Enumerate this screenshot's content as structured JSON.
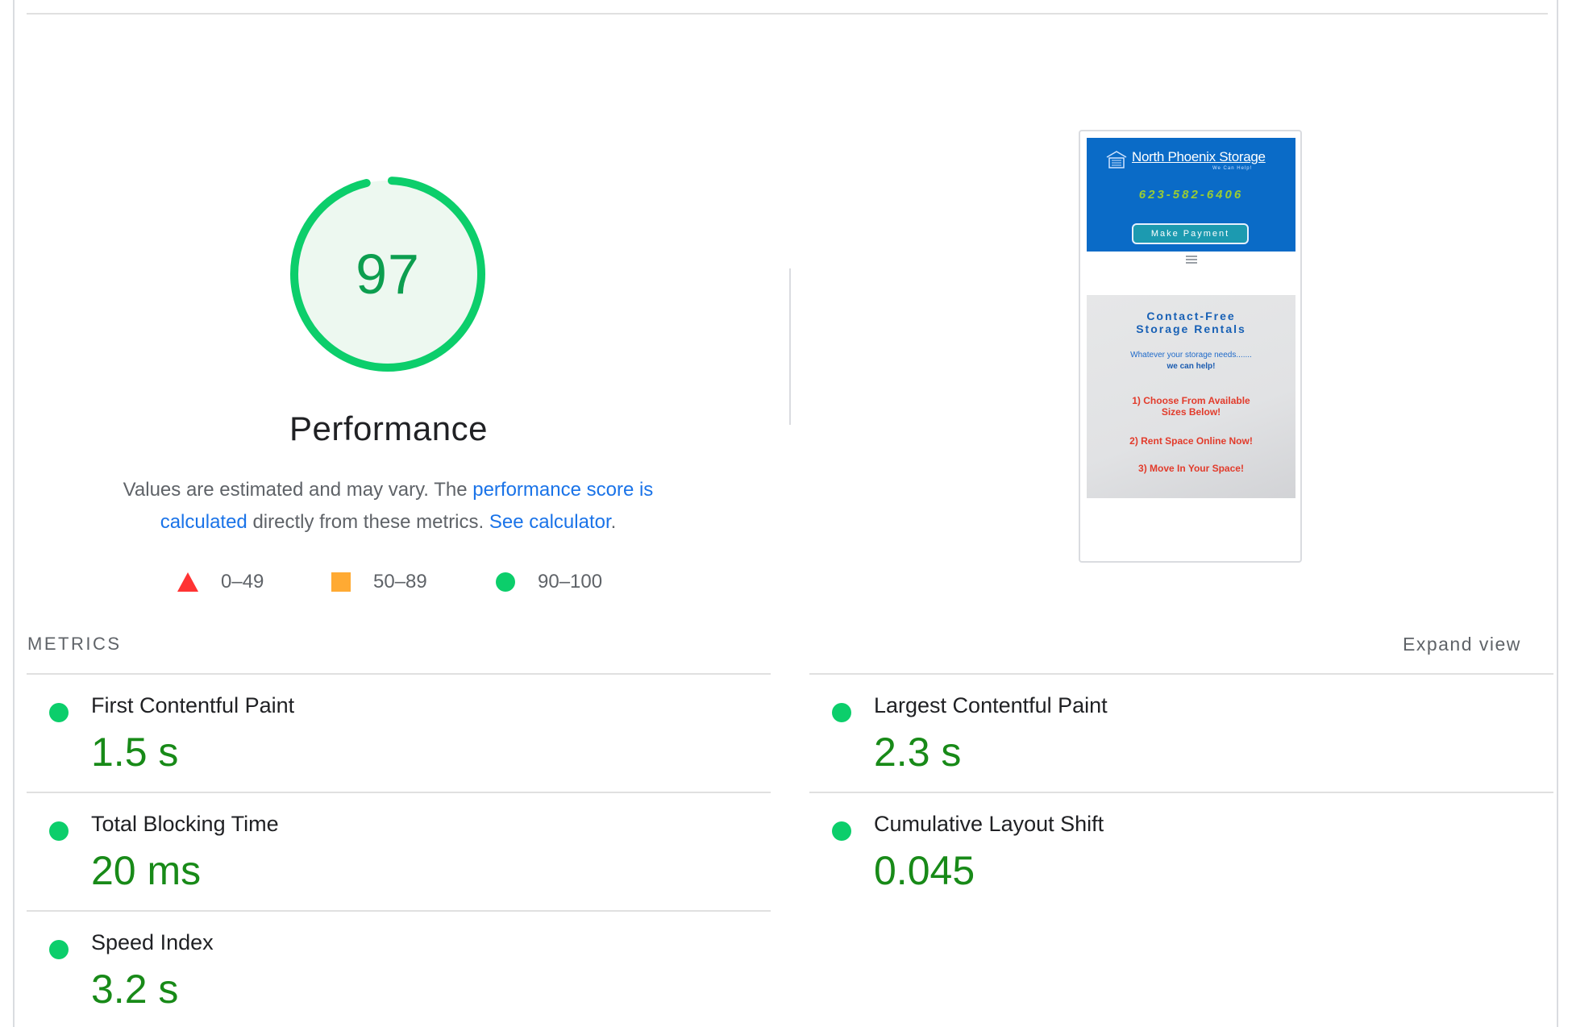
{
  "gauge": {
    "score": "97",
    "score_fraction": 0.97,
    "title": "Performance",
    "ring_color": "#0cce6b",
    "fill_color": "#edf8f0",
    "score_color": "#0c9e4f"
  },
  "description": {
    "text1": "Values are estimated and may vary. The ",
    "link1": "performance score is calculated",
    "text2": " directly from these metrics. ",
    "link2": "See calculator",
    "text3": "."
  },
  "legend": [
    {
      "range": "0–49",
      "shape": "triangle",
      "color": "#ff3333"
    },
    {
      "range": "50–89",
      "shape": "square",
      "color": "#ffaa33"
    },
    {
      "range": "90–100",
      "shape": "circle",
      "color": "#0cce6b"
    }
  ],
  "screenshot": {
    "brand": "North Phoenix Storage",
    "tagline": "We Can Help!",
    "phone": "623-582-6406",
    "button": "Make Payment",
    "hero_title_line1": "Contact-Free",
    "hero_title_line2": "Storage Rentals",
    "hero_sub1": "Whatever your storage needs.......",
    "hero_sub2": "we can help!",
    "step1_line1": "1) Choose From Available",
    "step1_line2": "Sizes Below!",
    "step2": "2) Rent Space Online Now!",
    "step3": "3) Move In Your Space!",
    "header_color": "#0a6bc7"
  },
  "metrics_section": {
    "label": "METRICS",
    "expand": "Expand view"
  },
  "metrics": [
    {
      "name": "First Contentful Paint",
      "value": "1.5 s",
      "status": "good"
    },
    {
      "name": "Largest Contentful Paint",
      "value": "2.3 s",
      "status": "good"
    },
    {
      "name": "Total Blocking Time",
      "value": "20 ms",
      "status": "good"
    },
    {
      "name": "Cumulative Layout Shift",
      "value": "0.045",
      "status": "good"
    },
    {
      "name": "Speed Index",
      "value": "3.2 s",
      "status": "good"
    }
  ],
  "colors": {
    "good": "#0cce6b",
    "metric_value": "#188a18",
    "link": "#1a73e8"
  }
}
